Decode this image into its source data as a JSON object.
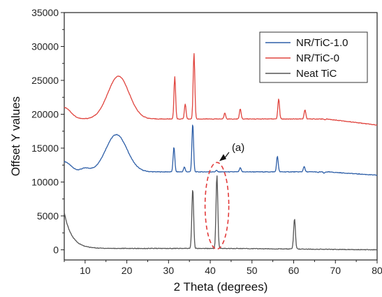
{
  "chart_data": {
    "type": "line",
    "xlabel": "2 Theta (degrees)",
    "ylabel": "Offset Y values",
    "xlim": [
      5,
      80
    ],
    "ylim": [
      -1500,
      35000
    ],
    "xticks": [
      10,
      20,
      30,
      40,
      50,
      60,
      70,
      80
    ],
    "yticks": [
      0,
      5000,
      10000,
      15000,
      20000,
      25000,
      30000,
      35000
    ],
    "grid": false,
    "legend_position": "top-right",
    "series": [
      {
        "name": "NR/TiC-1.0",
        "color": "#2e5fa8",
        "baseline": 11500,
        "peaks": [
          {
            "x": 5,
            "y": 13000
          },
          {
            "x": 10,
            "y": 12000
          },
          {
            "x": 17.5,
            "y": 17000
          },
          {
            "x": 31.3,
            "y": 15200
          },
          {
            "x": 33.8,
            "y": 12200
          },
          {
            "x": 35.8,
            "y": 18600
          },
          {
            "x": 41.5,
            "y": 11700
          },
          {
            "x": 47.2,
            "y": 12100
          },
          {
            "x": 56.1,
            "y": 13800
          },
          {
            "x": 62.5,
            "y": 12300
          },
          {
            "x": 65.8,
            "y": 11400
          },
          {
            "x": 67.3,
            "y": 11300
          },
          {
            "x": 80,
            "y": 11000
          }
        ]
      },
      {
        "name": "NR/TiC-0",
        "color": "#e0453f",
        "baseline": 19300,
        "peaks": [
          {
            "x": 5,
            "y": 21000
          },
          {
            "x": 18,
            "y": 25600
          },
          {
            "x": 31.5,
            "y": 25500
          },
          {
            "x": 34.0,
            "y": 21500
          },
          {
            "x": 36.1,
            "y": 29000
          },
          {
            "x": 43.5,
            "y": 20200
          },
          {
            "x": 47.2,
            "y": 20800
          },
          {
            "x": 56.4,
            "y": 22300
          },
          {
            "x": 62.7,
            "y": 20700
          },
          {
            "x": 67.5,
            "y": 19200
          },
          {
            "x": 80,
            "y": 18400
          }
        ]
      },
      {
        "name": "Neat TiC",
        "color": "#555555",
        "baseline": 200,
        "peaks": [
          {
            "x": 5,
            "y": 5500
          },
          {
            "x": 35.8,
            "y": 9000
          },
          {
            "x": 41.6,
            "y": 11000
          },
          {
            "x": 60.2,
            "y": 4700
          },
          {
            "x": 80,
            "y": 0
          }
        ]
      }
    ],
    "annotations": [
      {
        "text": "(a)",
        "target_x": 41.5,
        "target_y": 13500,
        "ellipse_center_x": 41.6,
        "ellipse_center_y": 6500
      }
    ]
  }
}
